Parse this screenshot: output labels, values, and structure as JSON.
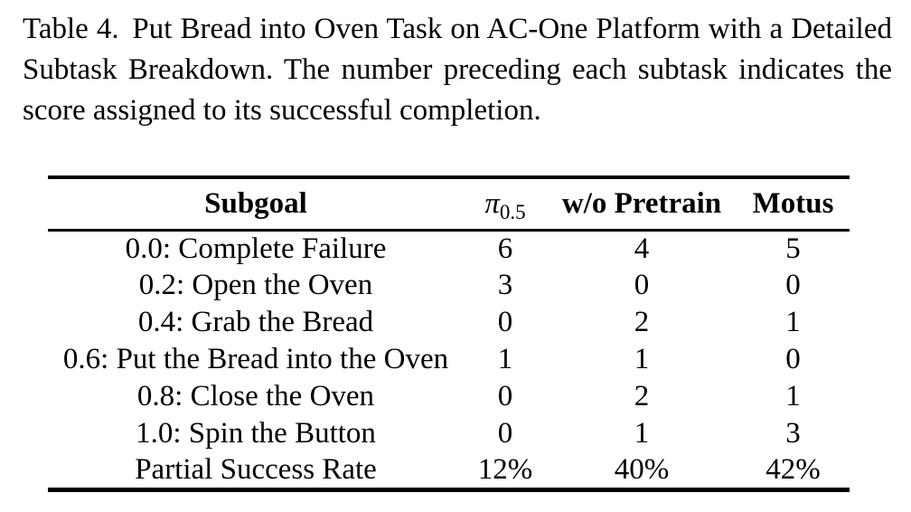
{
  "page": {
    "background_color": "#ffffff",
    "text_color": "#000000"
  },
  "caption": {
    "label": "Table 4.",
    "text": "Put Bread into Oven Task on AC-One Platform with a Detailed Subtask Breakdown. The number preceding each subtask indicates the score assigned to its successful completion."
  },
  "table": {
    "headers": {
      "subgoal": "Subgoal",
      "pi_symbol": "π",
      "pi_subscript": "0.5",
      "wo_pretrain": "w/o Pretrain",
      "motus": "Motus"
    },
    "rows": [
      {
        "subgoal": "0.0: Complete Failure",
        "pi05": "6",
        "wo_pretrain": "4",
        "motus": "5"
      },
      {
        "subgoal": "0.2: Open the Oven",
        "pi05": "3",
        "wo_pretrain": "0",
        "motus": "0"
      },
      {
        "subgoal": "0.4: Grab the Bread",
        "pi05": "0",
        "wo_pretrain": "2",
        "motus": "1"
      },
      {
        "subgoal": "0.6: Put the Bread into the Oven",
        "pi05": "1",
        "wo_pretrain": "1",
        "motus": "0"
      },
      {
        "subgoal": "0.8: Close the Oven",
        "pi05": "0",
        "wo_pretrain": "2",
        "motus": "1"
      },
      {
        "subgoal": "1.0: Spin the Button",
        "pi05": "0",
        "wo_pretrain": "1",
        "motus": "3"
      },
      {
        "subgoal": "Partial Success Rate",
        "pi05": "12%",
        "wo_pretrain": "40%",
        "motus": "42%"
      }
    ]
  }
}
